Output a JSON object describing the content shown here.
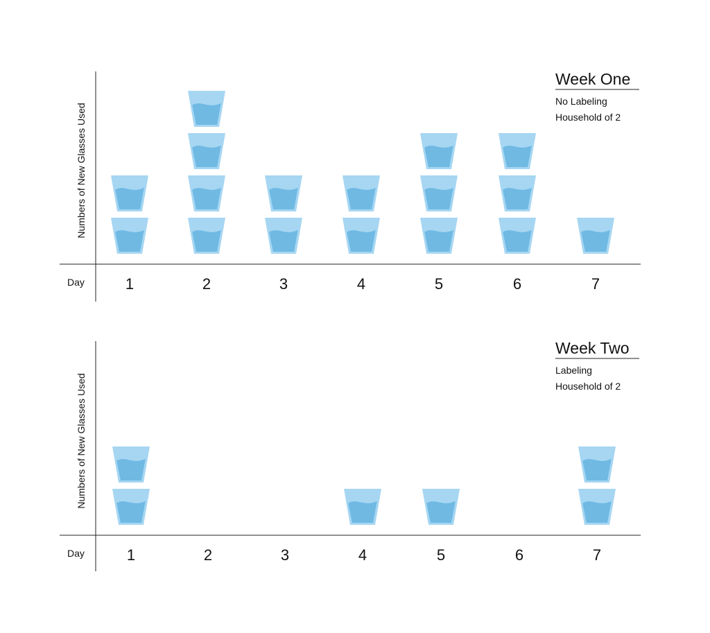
{
  "chart_data": [
    {
      "type": "pictograph",
      "title": "Week One",
      "subtitle_lines": [
        "No Labeling",
        "Household of 2"
      ],
      "ylabel": "Numbers of New Glasses Used",
      "xlabel": "Day",
      "categories": [
        "1",
        "2",
        "3",
        "4",
        "5",
        "6",
        "7"
      ],
      "values": [
        2,
        4,
        2,
        2,
        3,
        3,
        1
      ],
      "icon": "glass-of-water-icon",
      "grid": false
    },
    {
      "type": "pictograph",
      "title": "Week Two",
      "subtitle_lines": [
        "Labeling",
        "Household of 2"
      ],
      "ylabel": "Numbers of New Glasses Used",
      "xlabel": "Day",
      "categories": [
        "1",
        "2",
        "3",
        "4",
        "5",
        "6",
        "7"
      ],
      "values": [
        2,
        0,
        0,
        1,
        1,
        0,
        2
      ],
      "icon": "glass-of-water-icon",
      "grid": false
    }
  ],
  "colors": {
    "glass_fill": "#a6d6f2",
    "water_fill": "#6fb9e3",
    "axis": "#222222",
    "text": "#111111"
  }
}
